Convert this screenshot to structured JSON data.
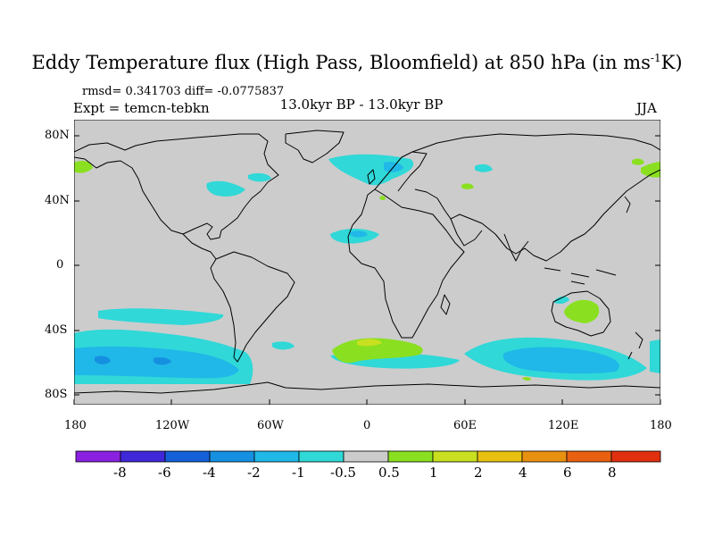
{
  "header": {
    "title_main": "Eddy Temperature flux (High Pass, Bloomfield) at 850 hPa (in ms",
    "title_sup": "-1",
    "title_end": "K)",
    "stats": "rmsd= 0.341703 diff= -0.0775837",
    "expt": "Expt = temcn-tebkn",
    "period": "13.0kyr BP - 13.0kyr BP",
    "season": "JJA"
  },
  "axes": {
    "lat_labels": [
      "80N",
      "40N",
      "0",
      "40S",
      "80S"
    ],
    "lon_labels": [
      "180",
      "120W",
      "60W",
      "0",
      "60E",
      "120E",
      "180"
    ]
  },
  "colorbar": {
    "labels": [
      "-8",
      "-6",
      "-4",
      "-2",
      "-1",
      "-0.5",
      "0.5",
      "1",
      "2",
      "4",
      "6",
      "8"
    ],
    "colors": [
      "#8a20e0",
      "#3f28d8",
      "#1560d8",
      "#1590e0",
      "#20b8e8",
      "#30d8d8",
      "#cccccc",
      "#8ae020",
      "#c8e020",
      "#e8c010",
      "#e89010",
      "#e86010",
      "#e03010"
    ]
  },
  "colors": {
    "land_fill": "#cccccc",
    "positive_anomaly": "#8ae020",
    "weak_negative": "#30d8d8",
    "moderate_negative": "#20b8e8"
  }
}
